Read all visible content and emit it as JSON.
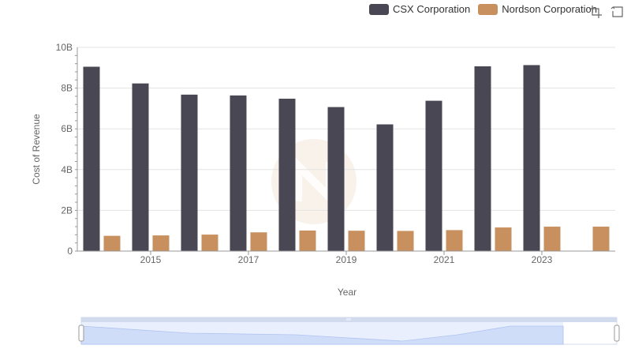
{
  "chart_data": {
    "type": "bar",
    "xlabel": "Year",
    "ylabel": "Cost of Revenue",
    "categories": [
      "2014",
      "2015",
      "2016",
      "2017",
      "2018",
      "2019",
      "2020",
      "2021",
      "2022",
      "2023",
      "2024"
    ],
    "x_tick_labels": [
      "2015",
      "2017",
      "2019",
      "2021",
      "2023"
    ],
    "y_ticks": [
      "0",
      "2B",
      "4B",
      "6B",
      "8B",
      "10B"
    ],
    "ylim": [
      0,
      10000000000
    ],
    "grid": true,
    "legend_position": "top-right",
    "series": [
      {
        "name": "CSX Corporation",
        "color": "#4a4754",
        "values": [
          9050000000,
          8230000000,
          7680000000,
          7640000000,
          7480000000,
          7070000000,
          6220000000,
          7380000000,
          9070000000,
          9130000000,
          null
        ]
      },
      {
        "name": "Nordson Corporation",
        "color": "#c8905e",
        "values": [
          750000000,
          770000000,
          810000000,
          920000000,
          1010000000,
          1000000000,
          990000000,
          1030000000,
          1160000000,
          1200000000,
          1200000000
        ]
      }
    ]
  },
  "toolbox": {
    "icons": [
      "zoom-icon",
      "restore-icon"
    ]
  }
}
